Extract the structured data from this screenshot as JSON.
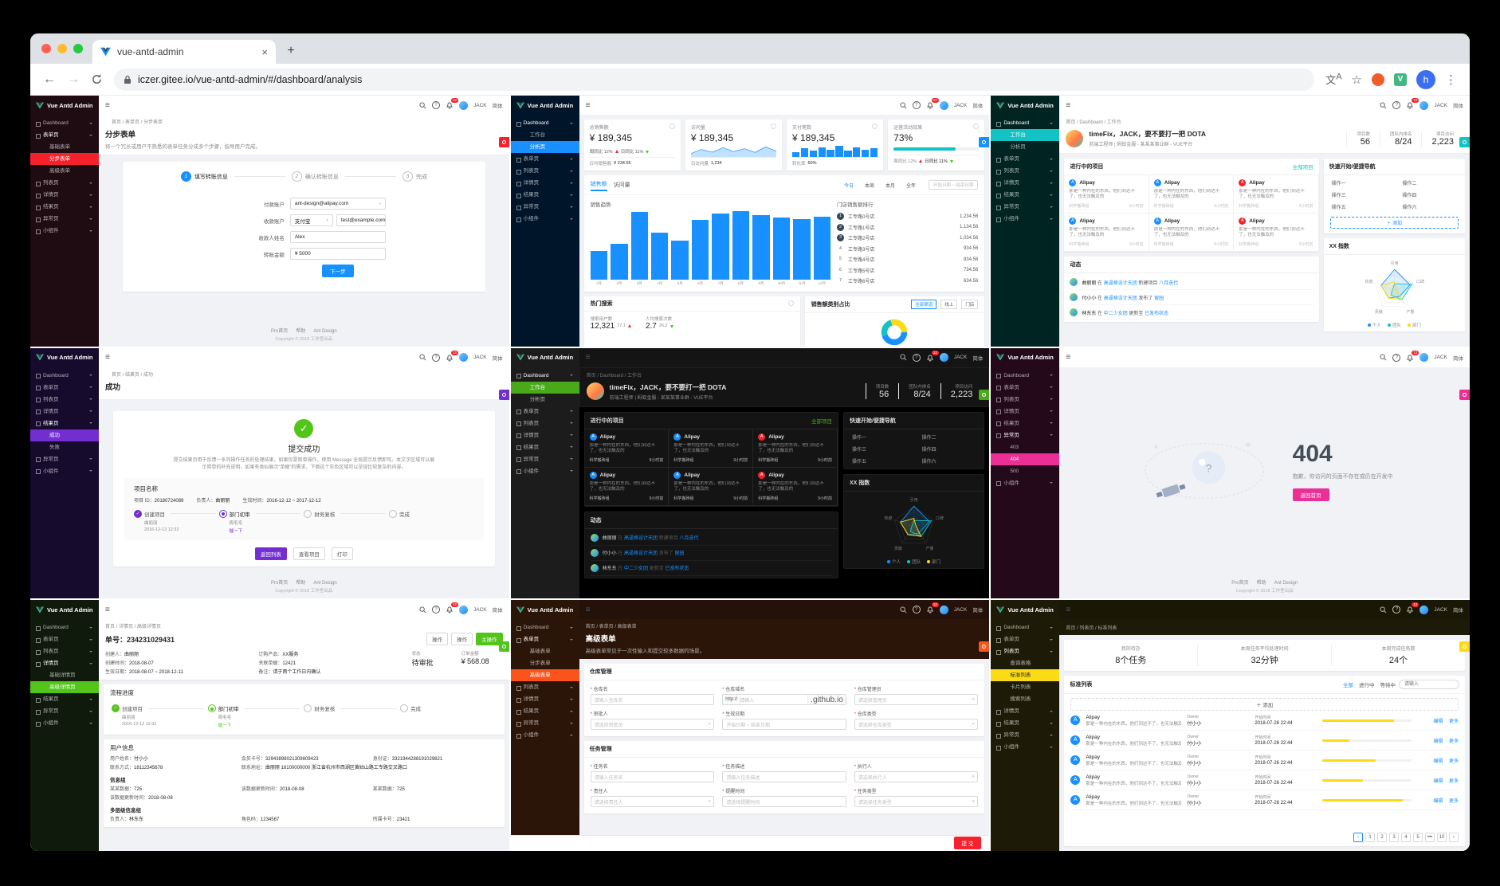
{
  "browser": {
    "tab_title": "vue-antd-admin",
    "url": "iczer.gitee.io/vue-antd-admin/#/dashboard/analysis",
    "profile_letter": "h",
    "new_tab": "+",
    "close_tab": "×"
  },
  "common": {
    "logo": "Vue Antd Admin",
    "user": "JACK",
    "lang": "简体",
    "badge": "12",
    "footer_links": [
      "Pro首页",
      "帮助",
      "Ant Design"
    ],
    "copyright": "Copyright © 2018 工作室出品"
  },
  "workplace": {
    "breadcrumb": "首页 / Dashboard / 工作台",
    "title": "工作台",
    "greeting": "timeFix，JACK，要不要打一把 DOTA",
    "subtitle": "前端工程师 | 蚂蚁金服 - 某某某事业群 - VUE平台",
    "stats": [
      {
        "label": "项目数",
        "value": "56"
      },
      {
        "label": "团队内排名",
        "value": "8/24"
      },
      {
        "label": "项目访问",
        "value": "2,223"
      }
    ],
    "projects_title": "进行中的项目",
    "projects_link": "全部项目",
    "projects": [
      {
        "name": "Alipay",
        "icon": "A",
        "color": "#1890ff",
        "desc": "那是一种内在的东西，他们到达不了，也无法触及的",
        "group": "科学搬砖组",
        "time": "9小时前"
      },
      {
        "name": "Alipay",
        "icon": "A",
        "color": "#1890ff",
        "desc": "那是一种内在的东西，他们到达不了，也无法触及的",
        "group": "科学搬砖组",
        "time": "9小时前"
      },
      {
        "name": "Alipay",
        "icon": "A",
        "color": "#f5222d",
        "desc": "那是一种内在的东西，他们到达不了，也无法触及的",
        "group": "科学搬砖组",
        "time": "9小时前"
      },
      {
        "name": "Alipay",
        "icon": "A",
        "color": "#1890ff",
        "desc": "那是一种内在的东西，他们到达不了，也无法触及的",
        "group": "科学搬砖组",
        "time": "9小时前"
      },
      {
        "name": "Alipay",
        "icon": "A",
        "color": "#1890ff",
        "desc": "那是一种内在的东西，他们到达不了，也无法触及的",
        "group": "科学搬砖组",
        "time": "9小时前"
      },
      {
        "name": "Alipay",
        "icon": "A",
        "color": "#f5222d",
        "desc": "那是一种内在的东西，他们到达不了，也无法触及的",
        "group": "科学搬砖组",
        "time": "9小时前"
      }
    ],
    "activity_title": "动态",
    "activities": [
      {
        "user": "曲丽丽",
        "in": "在",
        "group": "高逼格设计天团",
        "action": "新建项目",
        "target": "八月迭代"
      },
      {
        "user": "付小小",
        "in": "在",
        "group": "高逼格设计天团",
        "action": "发布了",
        "target": "留园"
      },
      {
        "user": "林东东",
        "in": "在",
        "group": "中二少女团",
        "action": "更新至",
        "target": "已发布状态"
      }
    ],
    "quick_title": "快速开始/便捷导航",
    "quick_ops": [
      "操作一",
      "操作二",
      "操作三",
      "操作四",
      "操作五",
      "操作六"
    ],
    "quick_add": "＋ 添加",
    "radar_title": "XX 指数"
  },
  "charts": {
    "sales_trend": {
      "type": "bar",
      "title": "销售趋势",
      "categories": [
        "1月",
        "2月",
        "3月",
        "4月",
        "5月",
        "6月",
        "7月",
        "8月",
        "9月",
        "10月",
        "11月",
        "12月"
      ],
      "values": [
        420,
        520,
        980,
        680,
        560,
        860,
        950,
        990,
        930,
        900,
        870,
        910
      ]
    },
    "visits_spark": [
      28,
      60,
      38,
      74,
      42,
      66,
      36,
      80,
      46
    ],
    "payments_spark": [
      4,
      7,
      5,
      8,
      6,
      9,
      5,
      8,
      6,
      7
    ],
    "radar": {
      "type": "radar",
      "labels": [
        "引用",
        "口碑",
        "产量",
        "贡献",
        "热度"
      ],
      "series": [
        {
          "name": "个人",
          "values": [
            10,
            8,
            4,
            5,
            7
          ],
          "color": "#1890ff"
        },
        {
          "name": "团队",
          "values": [
            3,
            9,
            6,
            3,
            1
          ],
          "color": "#13c2c2"
        },
        {
          "name": "部门",
          "values": [
            4,
            1,
            6,
            5,
            7
          ],
          "color": "#fadb14"
        }
      ]
    }
  },
  "panels": {
    "p1": {
      "menu": [
        {
          "t": "Dashboard",
          "c": "g"
        },
        {
          "t": "表单页",
          "c": "g open"
        },
        {
          "t": "基础表单",
          "c": "sub"
        },
        {
          "t": "分步表单",
          "c": "sub act"
        },
        {
          "t": "高级表单",
          "c": "sub"
        },
        {
          "t": "列表页",
          "c": "g"
        },
        {
          "t": "详情页",
          "c": "g"
        },
        {
          "t": "结果页",
          "c": "g"
        },
        {
          "t": "异常页",
          "c": "g"
        },
        {
          "t": "小组件",
          "c": "g"
        }
      ],
      "breadcrumb": "首页 / 表单页 / 分步表单",
      "title": "分步表单",
      "desc": "将一个冗长或用户不熟悉的表单任务分成多个步骤，指导用户完成。",
      "steps": [
        "填写转账信息",
        "确认转账信息",
        "完成"
      ],
      "payer_label": "付款账户",
      "payer_value": "ant-design@alipay.com",
      "payee_label": "收款账户",
      "payee_mode": "支付宝",
      "payee_value": "test@example.com",
      "name_label": "收款人姓名",
      "name_value": "Alex",
      "amount_label": "转账金额",
      "amount_value": "¥ 5000",
      "next_label": "下一步"
    },
    "p2": {
      "menu": [
        {
          "t": "Dashboard",
          "c": "g open"
        },
        {
          "t": "工作台",
          "c": "sub"
        },
        {
          "t": "分析页",
          "c": "sub act"
        },
        {
          "t": "表单页",
          "c": "g"
        },
        {
          "t": "列表页",
          "c": "g"
        },
        {
          "t": "详情页",
          "c": "g"
        },
        {
          "t": "结果页",
          "c": "g"
        },
        {
          "t": "异常页",
          "c": "g"
        },
        {
          "t": "小组件",
          "c": "g"
        }
      ],
      "cards": [
        {
          "label": "总销售额",
          "value": "¥ 189,345",
          "trend1": "周同比 12%",
          "trend2": "日同比 11%",
          "footer_label": "日均销售额",
          "footer_value": "¥ 234.56"
        },
        {
          "label": "访问量",
          "value": "¥ 189,345",
          "footer_label": "日访问量",
          "footer_value": "1,234"
        },
        {
          "label": "支付笔数",
          "value": "¥ 189,345",
          "footer_label": "转化率",
          "footer_value": "60%"
        },
        {
          "label": "运营活动效果",
          "value": "73%",
          "footer_label": "周同比 12%",
          "footer_value": "日同比 11%"
        }
      ],
      "tabs": [
        "销售额",
        "访问量"
      ],
      "ranges": [
        "今日",
        "本周",
        "本月",
        "全年"
      ],
      "date_range": "开始日期 ~ 结束日期",
      "chart_title": "销售趋势",
      "rank_title": "门店销售额排行",
      "rank": [
        {
          "no": "1",
          "name": "工专路0号店",
          "value": "1,234.56",
          "top": "top3"
        },
        {
          "no": "2",
          "name": "工专路1号店",
          "value": "1,134.56",
          "top": "top3"
        },
        {
          "no": "3",
          "name": "工专路2号店",
          "value": "1,034.56",
          "top": "top3"
        },
        {
          "no": "4",
          "name": "工专路3号店",
          "value": "934.56",
          "top": ""
        },
        {
          "no": "5",
          "name": "工专路4号店",
          "value": "834.56",
          "top": ""
        },
        {
          "no": "6",
          "name": "工专路5号店",
          "value": "734.56",
          "top": ""
        },
        {
          "no": "7",
          "name": "工专路6号店",
          "value": "634.56",
          "top": ""
        }
      ],
      "hot_title": "热门搜索",
      "hot_metrics": [
        {
          "label": "搜索用户数",
          "value": "12,321",
          "delta": "17.1"
        },
        {
          "label": "人均搜索次数",
          "value": "2.7",
          "delta": "26.2"
        }
      ],
      "ratio_title": "销售额类别占比",
      "ratio_tabs": [
        "全部渠道",
        "线上",
        "门店"
      ]
    },
    "p3": {
      "menu": [
        {
          "t": "Dashboard",
          "c": "g open"
        },
        {
          "t": "工作台",
          "c": "sub act"
        },
        {
          "t": "分析页",
          "c": "sub"
        },
        {
          "t": "表单页",
          "c": "g"
        },
        {
          "t": "列表页",
          "c": "g"
        },
        {
          "t": "详情页",
          "c": "g"
        },
        {
          "t": "结果页",
          "c": "g"
        },
        {
          "t": "异常页",
          "c": "g"
        },
        {
          "t": "小组件",
          "c": "g"
        }
      ]
    },
    "p4": {
      "menu": [
        {
          "t": "Dashboard",
          "c": "g"
        },
        {
          "t": "表单页",
          "c": "g"
        },
        {
          "t": "列表页",
          "c": "g"
        },
        {
          "t": "详情页",
          "c": "g"
        },
        {
          "t": "结果页",
          "c": "g open"
        },
        {
          "t": "成功",
          "c": "sub act"
        },
        {
          "t": "失败",
          "c": "sub"
        },
        {
          "t": "异常页",
          "c": "g"
        },
        {
          "t": "小组件",
          "c": "g"
        }
      ],
      "breadcrumb": "首页 / 结果页 / 成功",
      "page_title": "成功",
      "result_title": "提交成功",
      "result_desc": "提交结果页用于反馈一系列操作任务的处理结果，如果仅是简单操作，使用 Message 全局提示反馈即可。本文字区域可以展示简单的补充说明，如果有类似展示“单据”的需求，下面这个灰色区域可以呈现比较复杂的内容。",
      "box_title": "项目名称",
      "box_fields": [
        {
          "k": "项目 ID：",
          "v": "20180724089"
        },
        {
          "k": "负责人：",
          "v": "曲丽丽"
        },
        {
          "k": "生效时间：",
          "v": "2016-12-12 ~ 2017-12-12"
        }
      ],
      "steps": [
        {
          "t": "创建项目",
          "s1": "曲丽丽",
          "s2": "2016-12-12 12:32",
          "st": "done"
        },
        {
          "t": "部门初审",
          "s1": "周毛毛",
          "s2": "催一下",
          "st": "cur"
        },
        {
          "t": "财务复核",
          "s1": "",
          "s2": "",
          "st": ""
        },
        {
          "t": "完成",
          "s1": "",
          "s2": "",
          "st": ""
        }
      ],
      "buttons": [
        "返回列表",
        "查看项目",
        "打印"
      ]
    },
    "p5": {
      "menu": [
        {
          "t": "Dashboard",
          "c": "g open"
        },
        {
          "t": "工作台",
          "c": "sub act"
        },
        {
          "t": "分析页",
          "c": "sub"
        },
        {
          "t": "表单页",
          "c": "g"
        },
        {
          "t": "列表页",
          "c": "g"
        },
        {
          "t": "详情页",
          "c": "g"
        },
        {
          "t": "结果页",
          "c": "g"
        },
        {
          "t": "异常页",
          "c": "g"
        },
        {
          "t": "小组件",
          "c": "g"
        }
      ]
    },
    "p6": {
      "menu": [
        {
          "t": "Dashboard",
          "c": "g"
        },
        {
          "t": "表单页",
          "c": "g"
        },
        {
          "t": "列表页",
          "c": "g"
        },
        {
          "t": "详情页",
          "c": "g"
        },
        {
          "t": "结果页",
          "c": "g"
        },
        {
          "t": "异常页",
          "c": "g open"
        },
        {
          "t": "403",
          "c": "sub"
        },
        {
          "t": "404",
          "c": "sub act"
        },
        {
          "t": "500",
          "c": "sub"
        },
        {
          "t": "小组件",
          "c": "g"
        }
      ],
      "code": "404",
      "desc": "抱歉，你访问的页面不存在或仍在开发中",
      "button": "返回首页"
    },
    "p7": {
      "menu": [
        {
          "t": "Dashboard",
          "c": "g"
        },
        {
          "t": "表单页",
          "c": "g"
        },
        {
          "t": "列表页",
          "c": "g"
        },
        {
          "t": "详情页",
          "c": "g open"
        },
        {
          "t": "基础详情页",
          "c": "sub"
        },
        {
          "t": "高级详情页",
          "c": "sub act"
        },
        {
          "t": "结果页",
          "c": "g"
        },
        {
          "t": "异常页",
          "c": "g"
        },
        {
          "t": "小组件",
          "c": "g"
        }
      ],
      "breadcrumb": "首页 / 详情页 / 高级详情页",
      "title": "单号：234231029431",
      "actions": [
        "操作",
        "操作"
      ],
      "primary_action": "主操作",
      "status_label": "状态",
      "status_value": "待审批",
      "amount_label": "订单金额",
      "amount_value": "¥ 568.08",
      "descs": [
        {
          "k": "创建人：",
          "v": "曲丽丽"
        },
        {
          "k": "订购产品：",
          "v": "XX服务"
        },
        {
          "k": "创建时间：",
          "v": "2018-08-07"
        },
        {
          "k": "关联单据：",
          "v": "12421"
        },
        {
          "k": "生效日期：",
          "v": "2018-08-07 ~ 2018-12-11"
        },
        {
          "k": "备注：",
          "v": "请于两个工作日内确认"
        }
      ],
      "flow_title": "流程进度",
      "steps": [
        {
          "t": "创建项目",
          "s1": "曲丽丽",
          "s2": "2016-12-12 12:32",
          "st": "done"
        },
        {
          "t": "部门初审",
          "s1": "周毛毛",
          "s2": "催一下",
          "st": "cur"
        },
        {
          "t": "财务复核",
          "s1": "",
          "s2": "",
          "st": ""
        },
        {
          "t": "完成",
          "s1": "",
          "s2": "",
          "st": ""
        }
      ],
      "user_title": "用户信息",
      "user_fields": [
        {
          "k": "用户姓名：",
          "v": "付小小",
          "w": ""
        },
        {
          "k": "会员卡号：",
          "v": "32943898021309809423",
          "w": ""
        },
        {
          "k": "身份证：",
          "v": "3321944288191029821",
          "w": ""
        },
        {
          "k": "联系方式：",
          "v": "18112345678",
          "w": ""
        },
        {
          "k": "联系地址：",
          "v": "曲丽丽 18100000000 浙江省杭州市西湖区黄姑山路工专路交叉路口",
          "w": "wide"
        }
      ],
      "group_title": "信息组",
      "group_fields": [
        {
          "k": "某某数据：",
          "v": "725",
          "w": ""
        },
        {
          "k": "该数据更新时间：",
          "v": "2018-08-08",
          "w": ""
        },
        {
          "k": "某某数据：",
          "v": "725",
          "w": ""
        },
        {
          "k": "该数据更新时间：",
          "v": "2018-08-08",
          "w": ""
        }
      ],
      "multi_title": "多层级信息组",
      "multi_fields": [
        {
          "k": "负责人：",
          "v": "林东东",
          "w": ""
        },
        {
          "k": "角色码：",
          "v": "1234567",
          "w": ""
        },
        {
          "k": "所属卡号：",
          "v": "23421",
          "w": ""
        }
      ]
    },
    "p8": {
      "menu": [
        {
          "t": "Dashboard",
          "c": "g"
        },
        {
          "t": "表单页",
          "c": "g open"
        },
        {
          "t": "基础表单",
          "c": "sub"
        },
        {
          "t": "分步表单",
          "c": "sub"
        },
        {
          "t": "高级表单",
          "c": "sub act"
        },
        {
          "t": "列表页",
          "c": "g"
        },
        {
          "t": "详情页",
          "c": "g"
        },
        {
          "t": "结果页",
          "c": "g"
        },
        {
          "t": "异常页",
          "c": "g"
        },
        {
          "t": "小组件",
          "c": "g"
        }
      ],
      "breadcrumb": "首页 / 表单页 / 高级表单",
      "title": "高级表单",
      "desc": "高级表单常见于一次性输入和提交较多数据的场景。",
      "card1_title": "仓库管理",
      "card2_title": "任务管理",
      "fields1": [
        {
          "l": "仓库名",
          "ph": "请输入仓库名",
          "pre": "",
          "suf": "",
          "cr": ""
        },
        {
          "l": "仓库域名",
          "ph": "请输入",
          "pre": "http://",
          "suf": ".github.io",
          "cr": ""
        },
        {
          "l": "仓库管理员",
          "ph": "请选择管理员",
          "pre": "",
          "suf": "",
          "cr": "▾"
        },
        {
          "l": "审批人",
          "ph": "请选择审批员",
          "pre": "",
          "suf": "",
          "cr": "▾"
        },
        {
          "l": "生效日期",
          "ph": "开始日期 ~ 结束日期",
          "pre": "",
          "suf": "",
          "cr": ""
        },
        {
          "l": "仓库类型",
          "ph": "请选择仓库类型",
          "pre": "",
          "suf": "",
          "cr": "▾"
        }
      ],
      "fields2": [
        {
          "l": "任务名",
          "ph": "请输入任务名",
          "pre": "",
          "suf": "",
          "cr": ""
        },
        {
          "l": "任务描述",
          "ph": "请输入任务描述",
          "pre": "",
          "suf": "",
          "cr": ""
        },
        {
          "l": "执行人",
          "ph": "请选择执行人",
          "pre": "",
          "suf": "",
          "cr": "▾"
        },
        {
          "l": "责任人",
          "ph": "请选择责任人",
          "pre": "",
          "suf": "",
          "cr": "▾"
        },
        {
          "l": "提醒时间",
          "ph": "请选择提醒时间",
          "pre": "",
          "suf": "",
          "cr": ""
        },
        {
          "l": "任务类型",
          "ph": "请选择任务类型",
          "pre": "",
          "suf": "",
          "cr": "▾"
        }
      ],
      "submit": "提 交"
    },
    "p9": {
      "menu": [
        {
          "t": "Dashboard",
          "c": "g"
        },
        {
          "t": "表单页",
          "c": "g"
        },
        {
          "t": "列表页",
          "c": "g open"
        },
        {
          "t": "查询表格",
          "c": "sub"
        },
        {
          "t": "标准列表",
          "c": "sub act"
        },
        {
          "t": "卡片列表",
          "c": "sub"
        },
        {
          "t": "搜索列表",
          "c": "sub"
        },
        {
          "t": "详情页",
          "c": "g"
        },
        {
          "t": "结果页",
          "c": "g"
        },
        {
          "t": "异常页",
          "c": "g"
        },
        {
          "t": "小组件",
          "c": "g"
        }
      ],
      "breadcrumb": "首页 / 列表页 / 标准列表",
      "stats": [
        {
          "l": "我的待办",
          "v": "8个任务"
        },
        {
          "l": "本周任务平均处理时间",
          "v": "32分钟"
        },
        {
          "l": "本周完成任务数",
          "v": "24个"
        }
      ],
      "card_title": "标准列表",
      "tabs": [
        "全部",
        "进行中",
        "等待中"
      ],
      "search_ph": "请输入",
      "add_label": "＋ 添加",
      "owner_label": "Owner",
      "time_label": "开始时间",
      "edit_label": "编辑",
      "more_label": "更多",
      "rows": [
        {
          "icon": "A",
          "title": "Alipay",
          "desc": "那是一种内在的东西，他们到达不了，也无法触及的",
          "owner": "付小小",
          "time": "2018-07-26 22:44",
          "pct": 80
        },
        {
          "icon": "A",
          "title": "Alipay",
          "desc": "那是一种内在的东西，他们到达不了，也无法触及的",
          "owner": "付小小",
          "time": "2018-07-26 22:44",
          "pct": 30
        },
        {
          "icon": "A",
          "title": "Alipay",
          "desc": "那是一种内在的东西，他们到达不了，也无法触及的",
          "owner": "付小小",
          "time": "2018-07-26 22:44",
          "pct": 60
        },
        {
          "icon": "A",
          "title": "Alipay",
          "desc": "那是一种内在的东西，他们到达不了，也无法触及的",
          "owner": "付小小",
          "time": "2018-07-26 22:44",
          "pct": 45
        },
        {
          "icon": "A",
          "title": "Alipay",
          "desc": "那是一种内在的东西，他们到达不了，也无法触及的",
          "owner": "付小小",
          "time": "2018-07-26 22:44",
          "pct": 90
        }
      ],
      "pager": [
        "‹",
        "1",
        "2",
        "3",
        "4",
        "5",
        "•••",
        "10",
        "›"
      ]
    }
  }
}
